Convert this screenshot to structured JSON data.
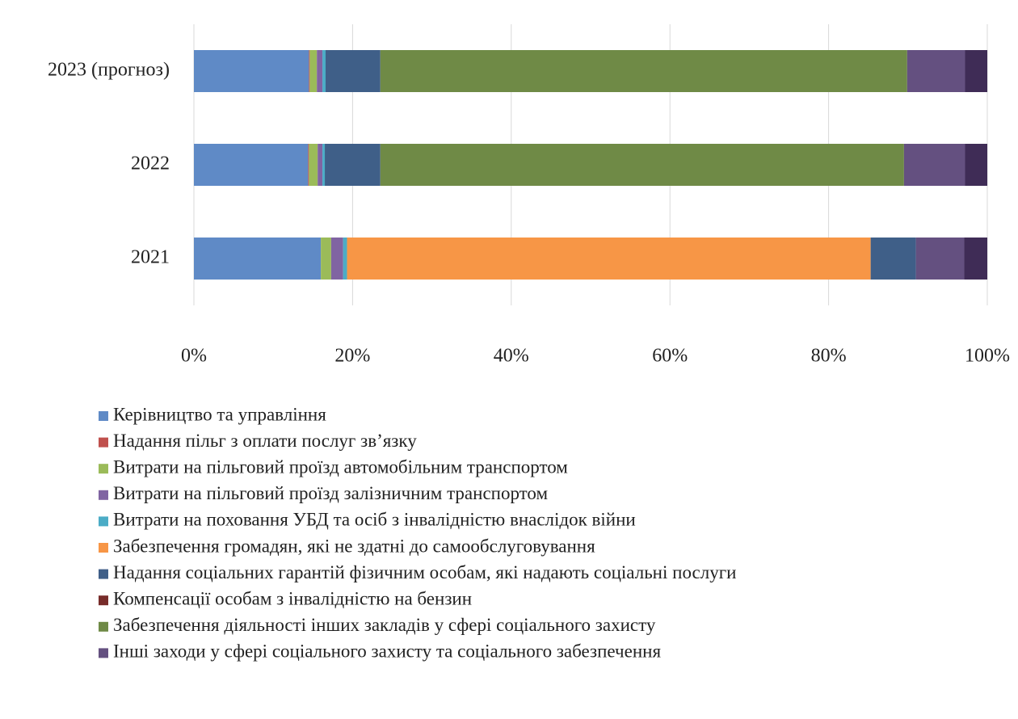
{
  "chart_data": {
    "type": "stacked-barh",
    "categories": [
      "2023 (прогноз)",
      "2022",
      "2021"
    ],
    "series": [
      {
        "name": "Керівництво та управління",
        "color": "#5f8ac6",
        "values": [
          14.5,
          14.4,
          16.0
        ]
      },
      {
        "name": "Надання пільг з оплати послуг зв’язку",
        "color": "#c0504d",
        "values": [
          0.1,
          0.1,
          0
        ]
      },
      {
        "name": "Витрати на пільговий проїзд автомобільним транспортом",
        "color": "#9bbb59",
        "values": [
          0.9,
          1.1,
          1.3
        ]
      },
      {
        "name": "Витрати на пільговий проїзд залізничним транспортом",
        "color": "#8064a2",
        "values": [
          0.7,
          0.6,
          1.5
        ]
      },
      {
        "name": "Витрати на поховання УБД та осіб з інвалідністю внаслідок війни",
        "color": "#4bacc6",
        "values": [
          0.4,
          0.3,
          0.5
        ]
      },
      {
        "name": "Забезпечення громадян, які не здатні до самообслуговування",
        "color": "#f79646",
        "values": [
          0,
          0,
          66.0
        ]
      },
      {
        "name": "Надання соціальних гарантій фізичним особам, які надають соціальні послуги",
        "color": "#3f5f88",
        "values": [
          6.9,
          7.0,
          5.7
        ]
      },
      {
        "name": "Компенсації особам з інвалідністю на бензин",
        "color": "#772c2a",
        "values": [
          0,
          0,
          0
        ]
      },
      {
        "name": "Забезпечення діяльності інших закладів у сфері соціального захисту",
        "color": "#6f8a46",
        "values": [
          66.4,
          66.0,
          0
        ]
      },
      {
        "name": "Інші заходи у сфері соціального захисту та соціального забезпечення",
        "color": "#645080",
        "values": [
          7.3,
          7.7,
          6.1
        ]
      },
      {
        "color": "#3f2c56",
        "values": [
          2.8,
          2.8,
          2.9
        ]
      }
    ],
    "xlim": [
      0,
      100
    ],
    "xticks": [
      {
        "value": 0,
        "label": "0%"
      },
      {
        "value": 20,
        "label": "20%"
      },
      {
        "value": 40,
        "label": "40%"
      },
      {
        "value": 60,
        "label": "60%"
      },
      {
        "value": 80,
        "label": "80%"
      },
      {
        "value": 100,
        "label": "100%"
      }
    ],
    "grid": true
  }
}
